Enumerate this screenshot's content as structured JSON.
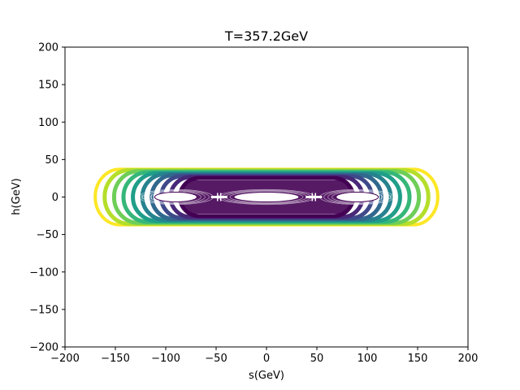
{
  "chart_data": {
    "type": "contour",
    "title": "T=357.2GeV",
    "xlabel": "s(GeV)",
    "ylabel": "h(GeV)",
    "xlim": [
      -200,
      200
    ],
    "ylim": [
      -200,
      200
    ],
    "xticks": [
      -200,
      -150,
      -100,
      -50,
      0,
      50,
      100,
      150,
      200
    ],
    "yticks": [
      -200,
      -150,
      -100,
      -50,
      0,
      50,
      100,
      150,
      200
    ],
    "xtick_labels": [
      "−200",
      "−150",
      "−100",
      "−50",
      "0",
      "50",
      "100",
      "150",
      "200"
    ],
    "ytick_labels": [
      "−200",
      "−150",
      "−100",
      "−50",
      "0",
      "50",
      "100",
      "150",
      "200"
    ],
    "grid": false,
    "colormap": [
      "#440154",
      "#482878",
      "#3e4989",
      "#31688e",
      "#26828e",
      "#1f9e89",
      "#35b779",
      "#6ece58",
      "#b5de2b",
      "#fde725"
    ],
    "outer_contour": {
      "s_extent": [
        -170,
        170
      ],
      "h_extent": [
        -37,
        37
      ]
    },
    "minima": [
      {
        "s": -90,
        "h": 0
      },
      {
        "s": 0,
        "h": 0
      },
      {
        "s": 90,
        "h": 0
      }
    ],
    "saddles": [
      {
        "s": -47,
        "h": 0
      },
      {
        "s": 47,
        "h": 0
      }
    ]
  }
}
